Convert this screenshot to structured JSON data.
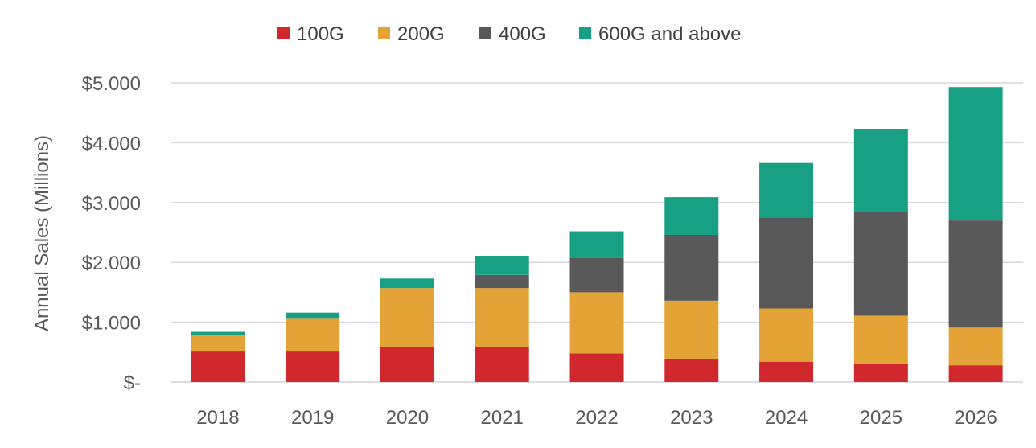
{
  "chart_data": {
    "type": "bar",
    "stacked": true,
    "title": "",
    "xlabel": "",
    "ylabel": "Annual Sales (Millions)",
    "ylim": [
      0,
      5000
    ],
    "yticks": [
      0,
      1000,
      2000,
      3000,
      4000,
      5000
    ],
    "ytick_labels": [
      "$-",
      "$1.000",
      "$2.000",
      "$3.000",
      "$4.000",
      "$5.000"
    ],
    "grid": true,
    "legend_position": "top",
    "categories": [
      "2018",
      "2019",
      "2020",
      "2021",
      "2022",
      "2023",
      "2024",
      "2025",
      "2026"
    ],
    "series": [
      {
        "name": "100G",
        "color": "#D1282E",
        "values": [
          510,
          510,
          590,
          580,
          480,
          390,
          340,
          300,
          280
        ]
      },
      {
        "name": "200G",
        "color": "#E3A336",
        "values": [
          280,
          560,
          980,
          990,
          1020,
          970,
          890,
          810,
          630
        ]
      },
      {
        "name": "400G",
        "color": "#595959",
        "values": [
          0,
          0,
          0,
          220,
          570,
          1100,
          1520,
          1750,
          1790
        ]
      },
      {
        "name": "600G and above",
        "color": "#18A085",
        "values": [
          50,
          90,
          160,
          320,
          450,
          630,
          910,
          1370,
          2230
        ]
      }
    ]
  }
}
